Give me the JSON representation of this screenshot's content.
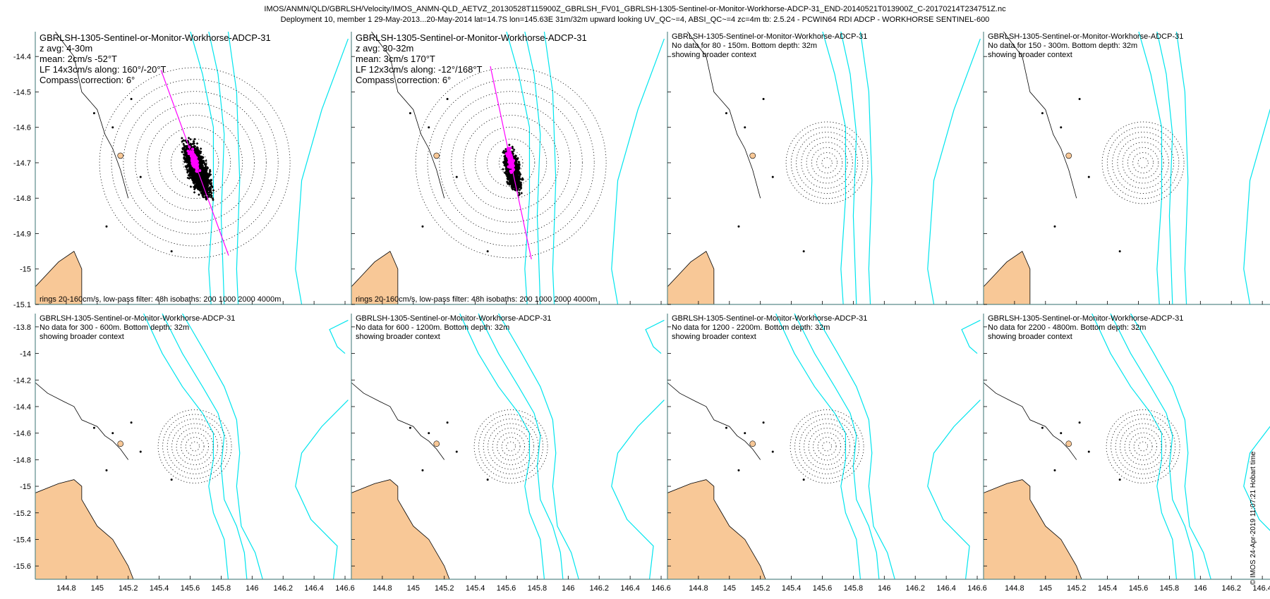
{
  "title_lines": [
    "IMOS/ANMN/QLD/GBRLSH/Velocity/IMOS_ANMN-QLD_AETVZ_20130528T115900Z_GBRLSH_FV01_GBRLSH-1305-Sentinel-or-Monitor-Workhorse-ADCP-31_END-20140521T013900Z_C-20170214T234751Z.nc",
    "Deployment 10, member 1 29-May-2013...20-May-2014 lat=14.7S lon=145.63E 31m/32m upward looking UV_QC~=4, ABSI_QC~=4 zc=4m tb: 2.5.24 - PCWIN64 RDI ADCP - WORKHORSE SENTINEL-600"
  ],
  "stamp": "© IMOS 24-Apr-2019 11:07:21 Hobart time",
  "colors": {
    "land": "#f8c897",
    "isobath": "#00e5ee",
    "axis": "#5b8a8a",
    "lf_line": "#ff00ff",
    "points": "#000000"
  },
  "map_context": {
    "station": {
      "lon": 145.63,
      "lat": -14.7
    },
    "isobaths_m": [
      200,
      1000,
      2000,
      4000
    ],
    "ring_speeds_cm_s": [
      20,
      40,
      60,
      80,
      100,
      120,
      140,
      160
    ]
  },
  "panels": [
    {
      "lines": [
        "GBRLSH-1305-Sentinel-or-Monitor-Workhorse-ADCP-31",
        "z avg: 4-30m",
        "mean: 2cm/s -52°T",
        "LF 14x3cm/s along: 160°/-20°T",
        "Compass correction: 6°"
      ],
      "footer": "rings 20-160cm/s, low-pass filter: 48h isobaths: 200 1000 2000 4000m",
      "xlim": [
        144.6,
        146.65
      ],
      "ylim": [
        -15.1,
        -14.33
      ],
      "yticks": [
        "-14.4",
        "-14.5",
        "-14.6",
        "-14.7",
        "-14.8",
        "-14.9",
        "-15",
        "-15.1"
      ],
      "xticks": [],
      "has_data": true,
      "along_deg": 160
    },
    {
      "lines": [
        "GBRLSH-1305-Sentinel-or-Monitor-Workhorse-ADCP-31",
        "z avg: 30-32m",
        "mean: 3cm/s 170°T",
        "LF 12x3cm/s along: -12°/168°T",
        "Compass correction: 6°"
      ],
      "footer": "rings 20-160cm/s, low-pass filter: 48h isobaths: 200 1000 2000 4000m",
      "xlim": [
        144.6,
        146.65
      ],
      "ylim": [
        -15.1,
        -14.33
      ],
      "yticks": [],
      "xticks": [],
      "has_data": true,
      "along_deg": 168
    },
    {
      "lines": [
        "GBRLSH-1305-Sentinel-or-Monitor-Workhorse-ADCP-31",
        "No data for 80 - 150m. Bottom depth: 32m",
        "showing broader context"
      ],
      "footer": "",
      "xlim": [
        144.6,
        146.65
      ],
      "ylim": [
        -15.1,
        -14.33
      ],
      "yticks": [],
      "xticks": [],
      "has_data": false
    },
    {
      "lines": [
        "GBRLSH-1305-Sentinel-or-Monitor-Workhorse-ADCP-31",
        "No data for 150 - 300m. Bottom depth: 32m",
        "showing broader context"
      ],
      "footer": "",
      "xlim": [
        144.6,
        146.65
      ],
      "ylim": [
        -15.1,
        -14.33
      ],
      "yticks": [],
      "xticks": [],
      "has_data": false
    },
    {
      "lines": [
        "GBRLSH-1305-Sentinel-or-Monitor-Workhorse-ADCP-31",
        "No data for 300 - 600m. Bottom depth: 32m",
        "showing broader context"
      ],
      "footer": "",
      "xlim": [
        144.6,
        146.65
      ],
      "ylim": [
        -15.7,
        -13.7
      ],
      "yticks": [
        "-13.8",
        "-14",
        "-14.2",
        "-14.4",
        "-14.6",
        "-14.8",
        "-15",
        "-15.2",
        "-15.4",
        "-15.6"
      ],
      "xticks": [
        "144.8",
        "145",
        "145.2",
        "145.4",
        "145.6",
        "145.8",
        "146",
        "146.2",
        "146.4",
        "146.6"
      ],
      "has_data": false
    },
    {
      "lines": [
        "GBRLSH-1305-Sentinel-or-Monitor-Workhorse-ADCP-31",
        "No data for 600 - 1200m. Bottom depth: 32m",
        "showing broader context"
      ],
      "footer": "",
      "xlim": [
        144.6,
        146.65
      ],
      "ylim": [
        -15.7,
        -13.7
      ],
      "yticks": [],
      "xticks": [
        "144.8",
        "145",
        "145.2",
        "145.4",
        "145.6",
        "145.8",
        "146",
        "146.2",
        "146.4",
        "146.6"
      ],
      "has_data": false
    },
    {
      "lines": [
        "GBRLSH-1305-Sentinel-or-Monitor-Workhorse-ADCP-31",
        "No data for 1200 - 2200m. Bottom depth: 32m",
        "showing broader context"
      ],
      "footer": "",
      "xlim": [
        144.6,
        146.65
      ],
      "ylim": [
        -15.7,
        -13.7
      ],
      "yticks": [],
      "xticks": [
        "144.8",
        "145",
        "145.2",
        "145.4",
        "145.6",
        "145.8",
        "146",
        "146.2",
        "146.4",
        "146.6"
      ],
      "has_data": false
    },
    {
      "lines": [
        "GBRLSH-1305-Sentinel-or-Monitor-Workhorse-ADCP-31",
        "No data for 2200 - 4800m. Bottom depth: 32m",
        "showing broader context"
      ],
      "footer": "",
      "xlim": [
        144.6,
        146.65
      ],
      "ylim": [
        -15.7,
        -13.7
      ],
      "yticks": [],
      "xticks": [
        "144.8",
        "145",
        "145.2",
        "145.4",
        "145.6",
        "145.8",
        "146",
        "146.2",
        "146.4",
        "146.6"
      ],
      "has_data": false
    }
  ]
}
